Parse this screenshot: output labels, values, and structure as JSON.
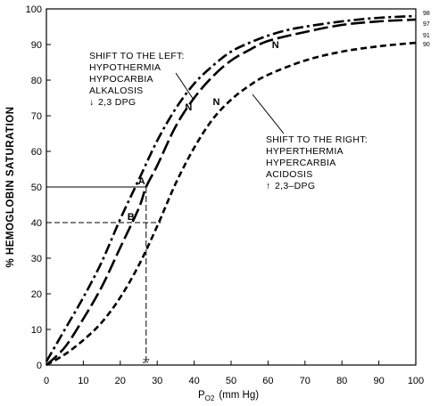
{
  "chart_data": {
    "type": "line",
    "title": "",
    "xlabel": "P",
    "xlabel_sub": "O2",
    "xlabel_unit": "(mm Hg)",
    "ylabel": "% HEMOGLOBIN SATURATION",
    "xlim": [
      0,
      100
    ],
    "ylim": [
      0,
      100
    ],
    "x_ticks": [
      0,
      10,
      20,
      30,
      40,
      50,
      60,
      70,
      80,
      90,
      100
    ],
    "y_ticks": [
      0,
      10,
      20,
      30,
      40,
      50,
      60,
      70,
      80,
      90,
      100
    ],
    "grid": false,
    "series": [
      {
        "key": "left",
        "style": "dash-dot",
        "end_label": "98",
        "x": [
          0,
          5,
          10,
          15,
          20,
          25,
          30,
          35,
          40,
          45,
          50,
          55,
          60,
          65,
          70,
          80,
          90,
          100
        ],
        "values": [
          1,
          10,
          19,
          29,
          41,
          52,
          63,
          72,
          79,
          84,
          88,
          90.5,
          92.5,
          94,
          95,
          96.5,
          97.5,
          98
        ]
      },
      {
        "key": "normal",
        "style": "long-dash",
        "label": "N",
        "end_label": "97",
        "x": [
          0,
          5,
          10,
          15,
          20,
          25,
          27,
          30,
          35,
          40,
          45,
          50,
          55,
          60,
          70,
          80,
          90,
          100
        ],
        "values": [
          0,
          5,
          13,
          22,
          33,
          44,
          50,
          56,
          67,
          75,
          81,
          85.5,
          88.5,
          91,
          93.5,
          95.5,
          96.5,
          97
        ]
      },
      {
        "key": "right",
        "style": "short-dash",
        "end_label_top": "91",
        "end_label": "90",
        "x": [
          0,
          5,
          10,
          15,
          20,
          25,
          30,
          35,
          40,
          45,
          50,
          55,
          60,
          70,
          80,
          90,
          100
        ],
        "values": [
          0,
          3,
          7,
          12,
          19,
          28,
          39,
          51,
          61,
          69,
          74.5,
          78.5,
          81.5,
          85.5,
          88,
          89.5,
          90.5
        ]
      }
    ],
    "annotations": {
      "left_title": "SHIFT TO THE LEFT:",
      "left_lines": [
        "HYPOTHERMIA",
        "HYPOCARBIA",
        "ALKALOSIS",
        "2,3  DPG"
      ],
      "left_arrow": "↓",
      "right_title": "SHIFT TO THE RIGHT:",
      "right_lines": [
        "HYPERTHERMIA",
        "HYPERCARBIA",
        "ACIDOSIS",
        "2,3–DPG"
      ],
      "right_arrow": "↑",
      "point_a": "A",
      "point_b": "B",
      "p50": "27",
      "point_a_xy": [
        27,
        50
      ],
      "point_b_xy": [
        20,
        40
      ],
      "n_labels": [
        [
          38.5,
          71.5
        ],
        [
          46,
          73
        ],
        [
          62,
          89
        ]
      ]
    }
  }
}
